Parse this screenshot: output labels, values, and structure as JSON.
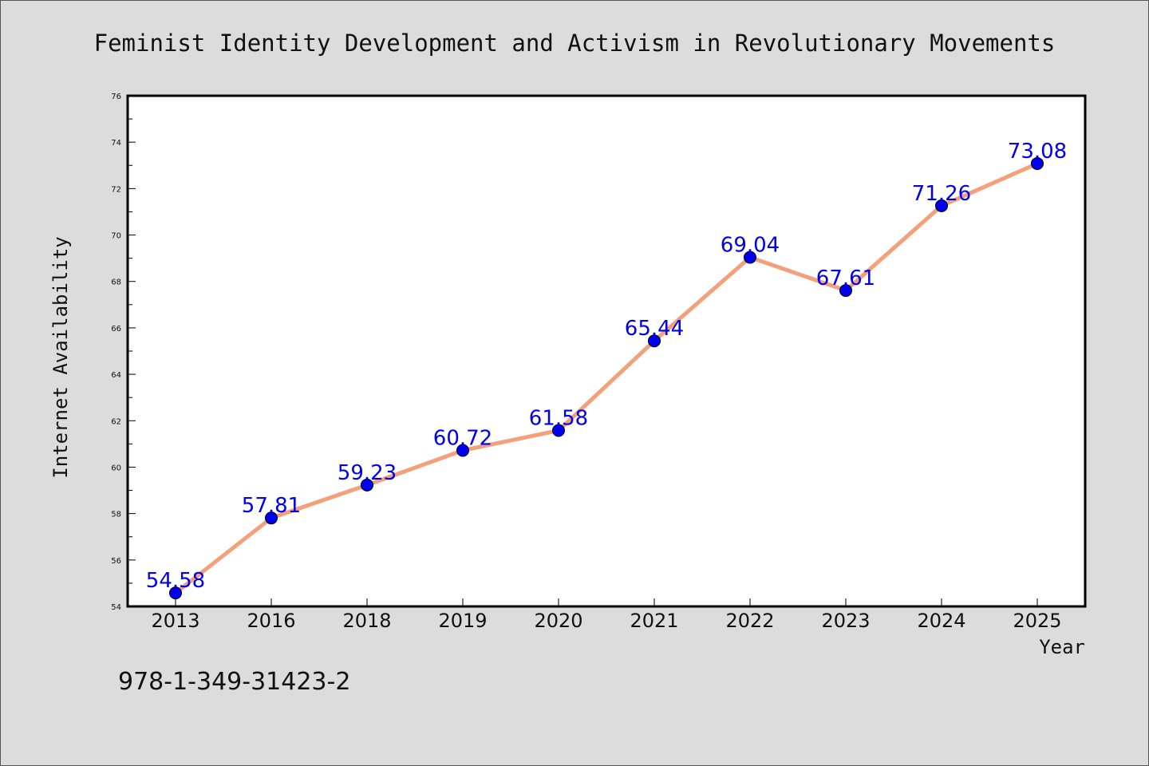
{
  "chart_data": {
    "type": "line",
    "title": "Feminist Identity Development and Activism in Revolutionary Movements",
    "xlabel": "Year",
    "ylabel": "Internet Availability",
    "categories": [
      "2013",
      "2016",
      "2018",
      "2019",
      "2020",
      "2021",
      "2022",
      "2023",
      "2024",
      "2025"
    ],
    "series": [
      {
        "values": [
          54.58,
          57.81,
          59.23,
          60.72,
          61.58,
          65.44,
          69.04,
          67.61,
          71.26,
          73.08
        ],
        "labels": [
          "54.58",
          "57.81",
          "59.23",
          "60.72",
          "61.58",
          "65.44",
          "69.04",
          "67.61",
          "71.26",
          "73.08"
        ]
      }
    ],
    "ylim": [
      54,
      76
    ],
    "yticks": [
      54,
      56,
      58,
      60,
      62,
      64,
      66,
      68,
      70,
      72,
      74,
      76
    ],
    "grid": false,
    "colors": {
      "line": "#f4a07a",
      "marker": "#0000ee",
      "label": "#0000ee",
      "background": "#dcdcdc",
      "plot_background": "#ffffff"
    }
  },
  "annotation": {
    "isbn": "978-1-349-31423-2"
  }
}
